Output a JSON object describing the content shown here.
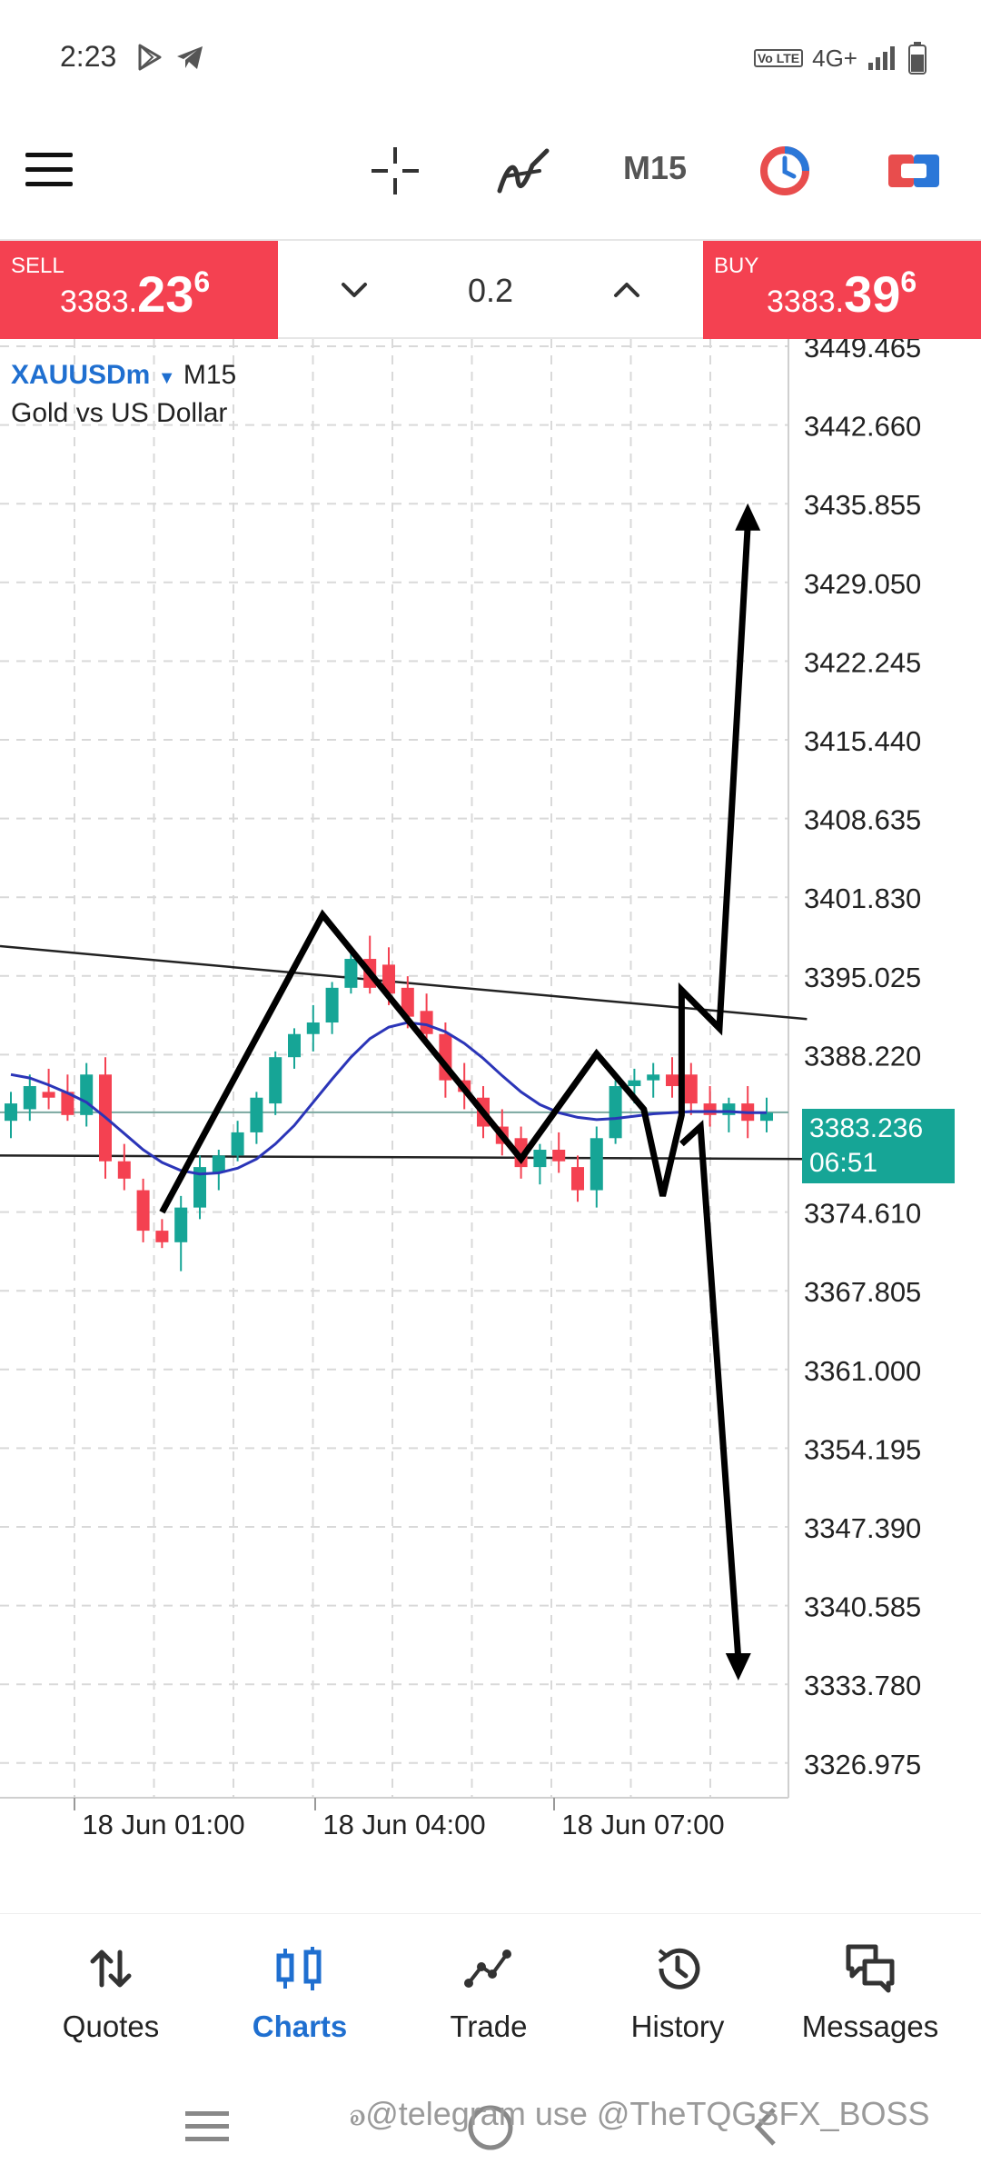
{
  "status_bar": {
    "time": "2:23",
    "network": "4G+",
    "volte": "Vo LTE"
  },
  "toolbar": {
    "timeframe": "M15"
  },
  "trade": {
    "sell_label": "SELL",
    "sell_price_main": "3383.",
    "sell_price_big": "23",
    "sell_price_sup": "6",
    "buy_label": "BUY",
    "buy_price_main": "3383.",
    "buy_price_big": "39",
    "buy_price_sup": "6",
    "volume": "0.2"
  },
  "chart": {
    "symbol": "XAUUSDm",
    "timeframe": "M15",
    "description": "Gold vs US Dollar",
    "current_price": "3383.236",
    "countdown": "06:51"
  },
  "chart_data": {
    "type": "candlestick",
    "y_ticks": [
      "3449.465",
      "3442.660",
      "3435.855",
      "3429.050",
      "3422.245",
      "3415.440",
      "3408.635",
      "3401.830",
      "3395.025",
      "3388.220",
      "3374.610",
      "3367.805",
      "3361.000",
      "3354.195",
      "3347.390",
      "3340.585",
      "3333.780",
      "3326.975"
    ],
    "x_ticks": [
      "18 Jun 01:00",
      "18 Jun 04:00",
      "18 Jun 07:00"
    ],
    "ylim": [
      3323.0,
      3449.465
    ],
    "grid": true,
    "up_color": "#16a596",
    "down_color": "#f44151",
    "ma_color": "#2b35b8",
    "candles": [
      {
        "o": 3382.5,
        "h": 3385.0,
        "l": 3381.0,
        "c": 3384.0
      },
      {
        "o": 3383.5,
        "h": 3386.5,
        "l": 3382.5,
        "c": 3385.5
      },
      {
        "o": 3385.0,
        "h": 3387.0,
        "l": 3383.5,
        "c": 3384.5
      },
      {
        "o": 3385.0,
        "h": 3386.5,
        "l": 3382.5,
        "c": 3383.0
      },
      {
        "o": 3383.0,
        "h": 3387.5,
        "l": 3382.0,
        "c": 3386.5
      },
      {
        "o": 3386.5,
        "h": 3388.0,
        "l": 3377.5,
        "c": 3379.0
      },
      {
        "o": 3379.0,
        "h": 3380.5,
        "l": 3376.5,
        "c": 3377.5
      },
      {
        "o": 3376.5,
        "h": 3377.5,
        "l": 3372.0,
        "c": 3373.0
      },
      {
        "o": 3373.0,
        "h": 3374.0,
        "l": 3371.5,
        "c": 3372.0
      },
      {
        "o": 3372.0,
        "h": 3376.0,
        "l": 3369.5,
        "c": 3375.0
      },
      {
        "o": 3375.0,
        "h": 3379.5,
        "l": 3374.0,
        "c": 3378.5
      },
      {
        "o": 3378.0,
        "h": 3380.0,
        "l": 3376.5,
        "c": 3379.5
      },
      {
        "o": 3379.5,
        "h": 3382.5,
        "l": 3379.0,
        "c": 3381.5
      },
      {
        "o": 3381.5,
        "h": 3385.0,
        "l": 3380.5,
        "c": 3384.5
      },
      {
        "o": 3384.0,
        "h": 3388.5,
        "l": 3383.0,
        "c": 3388.0
      },
      {
        "o": 3388.0,
        "h": 3390.5,
        "l": 3387.0,
        "c": 3390.0
      },
      {
        "o": 3390.0,
        "h": 3392.5,
        "l": 3388.5,
        "c": 3391.0
      },
      {
        "o": 3391.0,
        "h": 3394.5,
        "l": 3390.0,
        "c": 3394.0
      },
      {
        "o": 3394.0,
        "h": 3397.5,
        "l": 3393.5,
        "c": 3396.5
      },
      {
        "o": 3396.5,
        "h": 3398.5,
        "l": 3393.5,
        "c": 3394.0
      },
      {
        "o": 3396.0,
        "h": 3397.5,
        "l": 3392.5,
        "c": 3393.5
      },
      {
        "o": 3394.0,
        "h": 3395.0,
        "l": 3390.5,
        "c": 3391.5
      },
      {
        "o": 3392.0,
        "h": 3393.5,
        "l": 3389.0,
        "c": 3390.0
      },
      {
        "o": 3390.0,
        "h": 3391.0,
        "l": 3384.5,
        "c": 3386.0
      },
      {
        "o": 3386.0,
        "h": 3387.5,
        "l": 3383.5,
        "c": 3385.0
      },
      {
        "o": 3384.5,
        "h": 3385.5,
        "l": 3381.0,
        "c": 3382.0
      },
      {
        "o": 3382.0,
        "h": 3383.5,
        "l": 3379.5,
        "c": 3380.5
      },
      {
        "o": 3381.0,
        "h": 3382.0,
        "l": 3377.5,
        "c": 3378.5
      },
      {
        "o": 3378.5,
        "h": 3380.5,
        "l": 3377.0,
        "c": 3380.0
      },
      {
        "o": 3380.0,
        "h": 3381.5,
        "l": 3378.0,
        "c": 3379.0
      },
      {
        "o": 3378.5,
        "h": 3379.5,
        "l": 3375.5,
        "c": 3376.5
      },
      {
        "o": 3376.5,
        "h": 3382.0,
        "l": 3375.0,
        "c": 3381.0
      },
      {
        "o": 3381.0,
        "h": 3386.0,
        "l": 3380.5,
        "c": 3385.5
      },
      {
        "o": 3385.5,
        "h": 3387.0,
        "l": 3384.0,
        "c": 3386.0
      },
      {
        "o": 3386.0,
        "h": 3387.5,
        "l": 3384.5,
        "c": 3386.5
      },
      {
        "o": 3386.5,
        "h": 3388.0,
        "l": 3384.5,
        "c": 3385.5
      },
      {
        "o": 3386.5,
        "h": 3387.5,
        "l": 3383.0,
        "c": 3384.0
      },
      {
        "o": 3384.0,
        "h": 3385.5,
        "l": 3382.0,
        "c": 3383.0
      },
      {
        "o": 3383.0,
        "h": 3384.5,
        "l": 3381.5,
        "c": 3384.0
      },
      {
        "o": 3384.0,
        "h": 3385.5,
        "l": 3381.0,
        "c": 3382.5
      },
      {
        "o": 3382.5,
        "h": 3384.5,
        "l": 3381.5,
        "c": 3383.2
      }
    ],
    "moving_average": [
      3386.5,
      3386.2,
      3385.6,
      3384.9,
      3384.1,
      3382.8,
      3381.4,
      3380.0,
      3378.9,
      3378.2,
      3377.9,
      3378.0,
      3378.4,
      3379.2,
      3380.5,
      3382.1,
      3384.1,
      3386.1,
      3388.0,
      3389.6,
      3390.6,
      3391.0,
      3390.8,
      3390.2,
      3389.2,
      3387.9,
      3386.4,
      3385.0,
      3383.9,
      3383.2,
      3382.8,
      3382.6,
      3382.7,
      3382.9,
      3383.1,
      3383.2,
      3383.3,
      3383.3,
      3383.3,
      3383.2,
      3383.2
    ],
    "current_price_line": 3383.236,
    "trendlines": [
      {
        "x1": 0,
        "y1": 3397.6,
        "x2": 40.5,
        "y2": 3391.3
      },
      {
        "x1": 0,
        "y1": 3379.5,
        "x2": 40.5,
        "y2": 3379.2
      }
    ],
    "drawn_path": [
      {
        "x": 8,
        "y": 3374.6
      },
      {
        "x": 16.5,
        "y": 3400.3
      },
      {
        "x": 27,
        "y": 3379.2
      },
      {
        "x": 31,
        "y": 3388.3
      },
      {
        "x": 33.5,
        "y": 3383.5
      },
      {
        "x": 34.5,
        "y": 3376.0
      },
      {
        "x": 35.5,
        "y": 3383.0
      },
      {
        "x": 35.5,
        "y": 3393.8
      },
      {
        "x": 37.5,
        "y": 3390.5
      },
      {
        "x": 39,
        "y": 3434.0
      }
    ],
    "drawn_path_down": [
      {
        "x": 35.5,
        "y": 3380.5
      },
      {
        "x": 36.5,
        "y": 3382.0
      },
      {
        "x": 38.5,
        "y": 3336.0
      }
    ]
  },
  "bottom_nav": {
    "items": [
      {
        "label": "Quotes"
      },
      {
        "label": "Charts"
      },
      {
        "label": "Trade"
      },
      {
        "label": "History"
      },
      {
        "label": "Messages"
      }
    ]
  },
  "watermark": "ꭷ@telegram use @TheTQGSFX_BOSS"
}
